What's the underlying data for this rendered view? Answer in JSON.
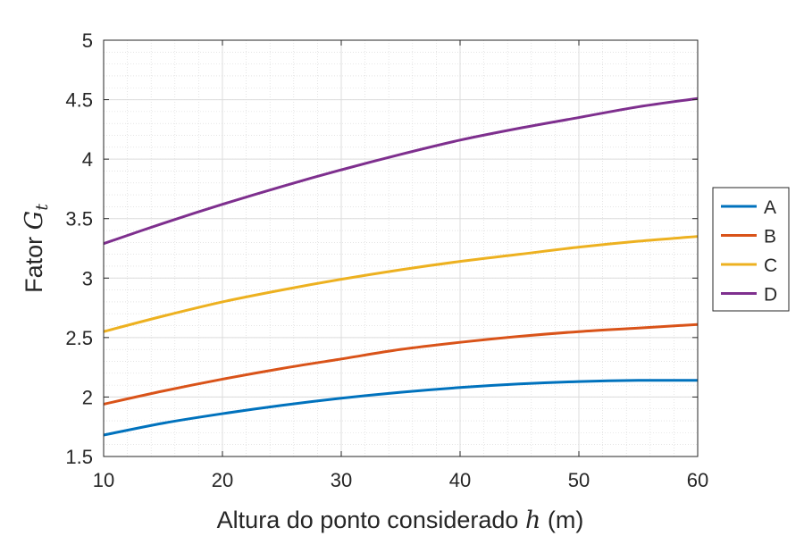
{
  "chart_data": {
    "type": "line",
    "xlabel": "Altura do ponto considerado",
    "xlabel_var": "h",
    "xlabel_unit": "(m)",
    "ylabel": "Fator",
    "ylabel_var": "G",
    "ylabel_sub": "t",
    "xlim": [
      10,
      60
    ],
    "ylim": [
      1.5,
      5
    ],
    "xticks": [
      10,
      20,
      30,
      40,
      50,
      60
    ],
    "yticks": [
      1.5,
      2,
      2.5,
      3,
      3.5,
      4,
      4.5,
      5
    ],
    "xtick_labels": [
      "10",
      "20",
      "30",
      "40",
      "50",
      "60"
    ],
    "ytick_labels": [
      "1.5",
      "2",
      "2.5",
      "3",
      "3.5",
      "4",
      "4.5",
      "5"
    ],
    "grid": true,
    "minor_grid": true,
    "legend_position": "outside-right",
    "x": [
      10,
      15,
      20,
      25,
      30,
      35,
      40,
      45,
      50,
      55,
      60
    ],
    "series": [
      {
        "name": "A",
        "color": "#0072BD",
        "values": [
          1.68,
          1.78,
          1.86,
          1.93,
          1.99,
          2.04,
          2.08,
          2.11,
          2.13,
          2.14,
          2.14
        ]
      },
      {
        "name": "B",
        "color": "#D95319",
        "values": [
          1.94,
          2.05,
          2.15,
          2.24,
          2.32,
          2.4,
          2.46,
          2.51,
          2.55,
          2.58,
          2.61
        ]
      },
      {
        "name": "C",
        "color": "#EDB120",
        "values": [
          2.55,
          2.68,
          2.8,
          2.9,
          2.99,
          3.07,
          3.14,
          3.2,
          3.26,
          3.31,
          3.35
        ]
      },
      {
        "name": "D",
        "color": "#7E2F8E",
        "values": [
          3.29,
          3.46,
          3.62,
          3.77,
          3.91,
          4.04,
          4.16,
          4.26,
          4.35,
          4.44,
          4.51
        ]
      }
    ]
  }
}
